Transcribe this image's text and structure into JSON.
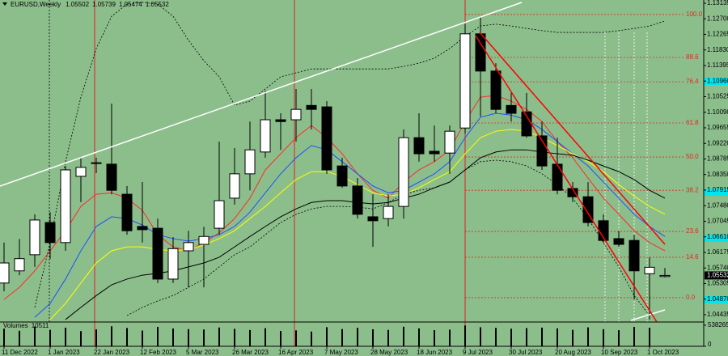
{
  "chart_data": {
    "type": "candlestick",
    "symbol": "EURUSD,Weekly",
    "categories": [
      "11 Dec 2022",
      null,
      null,
      "1 Jan 2023",
      null,
      null,
      "22 Jan 2023",
      null,
      null,
      "12 Feb 2023",
      null,
      null,
      "5 Mar 2023",
      null,
      null,
      "26 Mar 2023",
      null,
      null,
      "16 Apr 2023",
      null,
      null,
      "7 May 2023",
      null,
      null,
      "28 May 2023",
      null,
      null,
      "18 Jun 2023",
      null,
      null,
      "9 Jul 2023",
      null,
      null,
      "30 Jul 2023",
      null,
      null,
      "20 Aug 2023",
      null,
      null,
      "10 Sep 2023",
      null,
      null,
      "1 Oct 2023",
      null
    ],
    "open": [
      1.0532,
      1.0566,
      1.0611,
      1.0701,
      1.0645,
      1.083,
      1.0868,
      1.0864,
      1.078,
      1.069,
      1.0685,
      1.0543,
      1.0622,
      1.064,
      1.0685,
      1.0769,
      1.0837,
      1.0898,
      1.0988,
      1.0988,
      1.1028,
      1.1024,
      1.0859,
      1.0803,
      1.0717,
      1.0712,
      1.0746,
      1.0938,
      1.09,
      1.0895,
      1.0965,
      1.1228,
      1.1124,
      1.1028,
      1.101,
      1.0943,
      1.0864,
      1.0796,
      1.0773,
      1.0706,
      1.0656,
      1.0651,
      1.0558,
      1.05502
    ],
    "high": [
      1.0645,
      1.0655,
      1.0724,
      1.073,
      1.0859,
      1.0882,
      1.0882,
      1.1033,
      1.0803,
      1.0814,
      1.0712,
      1.066,
      1.0678,
      1.0689,
      1.0927,
      1.0909,
      1.0983,
      1.1069,
      1.1006,
      1.1074,
      1.1074,
      1.104,
      1.0882,
      1.0825,
      1.078,
      1.078,
      1.0961,
      1.1006,
      1.0972,
      1.0972,
      1.1255,
      1.1277,
      1.1146,
      1.1063,
      1.1063,
      1.0983,
      1.0938,
      1.0814,
      1.0814,
      1.0724,
      1.0678,
      1.0667,
      1.0604,
      1.05739
    ],
    "low": [
      1.0509,
      1.0554,
      1.0577,
      1.0599,
      1.0622,
      1.0758,
      1.0839,
      1.078,
      1.0667,
      1.0645,
      1.0532,
      1.0532,
      1.052,
      1.052,
      1.0667,
      1.0751,
      1.0791,
      1.0882,
      1.0904,
      1.0927,
      1.0961,
      1.0837,
      1.0798,
      1.0712,
      1.0633,
      1.069,
      1.0712,
      1.0871,
      1.0871,
      1.0837,
      1.095,
      1.0997,
      1.1006,
      1.0983,
      1.0938,
      1.0848,
      1.078,
      1.0758,
      1.069,
      1.0645,
      1.0633,
      1.0486,
      1.043,
      1.05474
    ],
    "close": [
      1.0588,
      1.06,
      1.0708,
      1.0645,
      1.0848,
      1.0855,
      1.0866,
      1.0791,
      1.0678,
      1.0681,
      1.0543,
      1.0628,
      1.0645,
      1.0662,
      1.0762,
      1.0837,
      1.0904,
      1.0988,
      1.0983,
      1.1017,
      1.1017,
      1.0848,
      1.0803,
      1.0724,
      1.0706,
      1.0746,
      1.0938,
      1.0893,
      1.0893,
      1.0956,
      1.1228,
      1.1124,
      1.1017,
      1.1006,
      1.0943,
      1.0859,
      1.0791,
      1.0773,
      1.0701,
      1.0651,
      1.064,
      1.0566,
      1.0576,
      1.05532
    ],
    "up_color": "#ffffff",
    "down_color": "#000000",
    "ylim": [
      1.04231,
      1.13225
    ],
    "yticks": [
      1.13135,
      {
        "value": 1.127,
        "label": "1.12700"
      },
      1.12265,
      {
        "value": 1.1183,
        "label": "1.11830"
      },
      1.11395,
      {
        "value": 1.1096,
        "label": "1.10960"
      },
      1.10525,
      {
        "value": 1.1009,
        "label": "1.10090"
      },
      1.09655,
      {
        "value": 1.0922,
        "label": "1.09220"
      },
      1.08785,
      {
        "value": 1.0835,
        "label": "1.08350"
      },
      1.07915,
      {
        "value": 1.0748,
        "label": "1.07480"
      },
      1.07045,
      {
        "value": 1.0661,
        "label": "1.06610"
      },
      1.06175,
      {
        "value": 1.0574,
        "label": "1.05740"
      },
      1.05305,
      {
        "value": 1.0487,
        "label": "1.04870"
      },
      1.04435
    ],
    "overlays": [
      {
        "color": "#ff2a2a",
        "line_style": "solid",
        "values": [
          1.0486,
          1.052,
          1.0566,
          1.0622,
          1.0678,
          1.0746,
          1.078,
          1.0784,
          1.0769,
          1.0735,
          1.0667,
          1.0633,
          1.0622,
          1.0645,
          1.0672,
          1.0712,
          1.0769,
          1.0848,
          1.0893,
          1.0938,
          1.0972,
          1.0938,
          1.0893,
          1.0837,
          1.0791,
          1.0769,
          1.0814,
          1.0848,
          1.0871,
          1.0904,
          1.0983,
          1.1051,
          1.1056,
          1.104,
          1.1017,
          1.0983,
          1.0927,
          1.0882,
          1.0825,
          1.0769,
          1.0724,
          1.0678,
          1.0645,
          1.0622
        ]
      },
      {
        "color": "#1e4fff",
        "line_style": "solid",
        "values": [
          null,
          null,
          1.0436,
          1.0475,
          1.0543,
          1.0622,
          1.069,
          1.0717,
          1.0712,
          1.0694,
          1.0667,
          1.0656,
          1.0649,
          1.0656,
          1.0667,
          1.069,
          1.073,
          1.0784,
          1.0837,
          1.0882,
          1.0916,
          1.0904,
          1.0871,
          1.0837,
          1.0803,
          1.0784,
          1.0791,
          1.0814,
          1.0837,
          1.0871,
          1.0938,
          1.0995,
          1.1006,
          1.1001,
          1.0988,
          1.0961,
          1.0927,
          1.0893,
          1.0859,
          1.0814,
          1.0769,
          1.0724,
          1.069,
          1.0662
        ]
      },
      {
        "color": "#ffff00",
        "line_style": "solid",
        "values": [
          null,
          null,
          null,
          1.043,
          1.0475,
          1.0532,
          1.0588,
          1.0622,
          1.0633,
          1.0633,
          1.0626,
          1.0622,
          1.0626,
          1.0638,
          1.0656,
          1.0678,
          1.0712,
          1.0746,
          1.0784,
          1.0821,
          1.0843,
          1.0843,
          1.083,
          1.0807,
          1.0784,
          1.0775,
          1.078,
          1.0798,
          1.0821,
          1.0843,
          1.0893,
          1.0938,
          1.0956,
          1.0961,
          1.0956,
          1.0938,
          1.0916,
          1.0893,
          1.0871,
          1.0843,
          1.0807,
          1.0775,
          1.0746,
          1.0724
        ]
      },
      {
        "color": "#000000",
        "line_style": "solid",
        "values": [
          null,
          null,
          null,
          null,
          1.043,
          1.0464,
          1.0497,
          1.0527,
          1.0543,
          1.0554,
          1.0559,
          1.0566,
          1.0577,
          1.0588,
          1.0604,
          1.0633,
          1.0662,
          1.069,
          1.0717,
          1.0739,
          1.0757,
          1.0762,
          1.0762,
          1.0757,
          1.0753,
          1.0757,
          1.0769,
          1.078,
          1.0798,
          1.0814,
          1.0848,
          1.0882,
          1.0898,
          1.0904,
          1.0904,
          1.0898,
          1.0893,
          1.0889,
          1.0875,
          1.0859,
          1.0843,
          1.0821,
          1.0791,
          1.0769
        ]
      },
      {
        "color": "#000000",
        "line_style": "dotted",
        "values": [
          null,
          null,
          1.0464,
          1.0645,
          1.0871,
          1.1051,
          1.1187,
          1.1277,
          1.1311,
          1.1316,
          1.1311,
          1.1277,
          1.121,
          1.1153,
          1.1108,
          1.1029,
          1.104,
          1.1074,
          1.1108,
          1.1119,
          1.113,
          1.113,
          1.113,
          1.113,
          1.113,
          1.113,
          1.1137,
          1.1146,
          1.116,
          1.1187,
          1.1221,
          1.125,
          1.1255,
          1.125,
          1.1243,
          1.1237,
          1.1232,
          1.1232,
          1.1232,
          1.1232,
          1.1237,
          1.1243,
          1.125,
          1.1264
        ]
      },
      {
        "color": "#000000",
        "line_style": "dotted",
        "values": [
          null,
          null,
          null,
          null,
          null,
          null,
          null,
          null,
          1.0441,
          1.0464,
          1.0482,
          1.0497,
          1.052,
          1.0543,
          1.0577,
          1.0611,
          1.0633,
          1.0667,
          1.0701,
          1.0724,
          1.0739,
          1.0746,
          1.0746,
          1.0744,
          1.0739,
          1.0757,
          1.078,
          1.0791,
          1.0798,
          1.0814,
          1.0848,
          1.0871,
          1.0875,
          1.0871,
          1.0859,
          1.0837,
          1.0807,
          1.0769,
          1.0712,
          1.0645,
          1.0577,
          1.0497,
          1.0441,
          null
        ]
      }
    ],
    "fib_color": "#e0281e",
    "fib_levels": [
      {
        "ratio": {
          "value": 100,
          "label": "100.0"
        },
        "price": 1.1282
      },
      {
        "ratio": 88.6,
        "price": 1.1162
      },
      {
        "ratio": 76.4,
        "price": 1.1094
      },
      {
        "ratio": 61.8,
        "price": 1.0979
      },
      {
        "ratio": {
          "value": 50,
          "label": "50.0"
        },
        "price": 1.0884
      },
      {
        "ratio": 38.2,
        "price": 1.0791
      },
      {
        "ratio": 23.6,
        "price": 1.0676
      },
      {
        "ratio": 14.6,
        "price": 1.0604
      },
      {
        "ratio": {
          "value": 0,
          "label": "0.0"
        },
        "price": 1.0491
      }
    ],
    "volume_label": "Volumes",
    "volume_color": "#000000",
    "volumes": [
      452000,
      398000,
      505000,
      421000,
      476000,
      389000,
      433000,
      512000,
      468000,
      402000,
      497000,
      455000,
      438000,
      429000,
      481000,
      446000,
      417000,
      463000,
      392000,
      408000,
      377000,
      489000,
      441000,
      472000,
      435000,
      419000,
      501000,
      458000,
      413000,
      426000,
      532000,
      487000,
      471000,
      449000,
      466000,
      478000,
      459000,
      421000,
      484000,
      437000,
      412000,
      496000,
      474000,
      10511
    ],
    "volume_ylim": [
      0,
      538265
    ],
    "volume_yticks": [
      538265,
      0
    ]
  }
}
